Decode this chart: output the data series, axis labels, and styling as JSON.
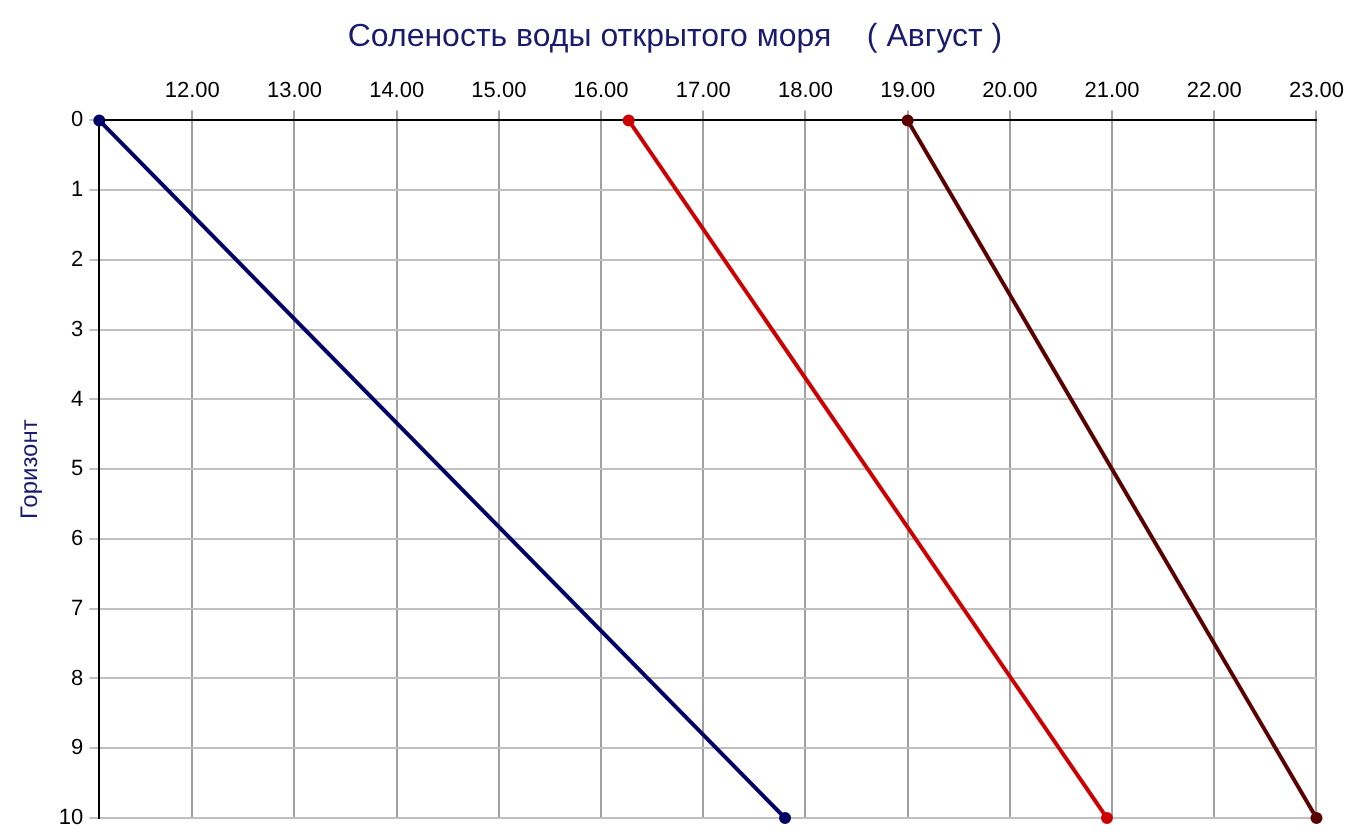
{
  "chart_data": {
    "type": "line",
    "title": "Соленость воды открытого моря    ( Август )",
    "ylabel": "Горизонт",
    "series": [
      {
        "color": "#000066",
        "x": [
          11.09,
          17.8
        ],
        "values": [
          0,
          10
        ]
      },
      {
        "color": "#cc0000",
        "x": [
          16.27,
          20.95
        ],
        "values": [
          0,
          10
        ]
      },
      {
        "color": "#5a0000",
        "x": [
          19.0,
          23.0
        ],
        "values": [
          0,
          10
        ]
      }
    ],
    "xlim": [
      11.09,
      23.0
    ],
    "ylim": [
      10,
      0
    ],
    "xticks": [
      {
        "value": 12,
        "label": "12.00"
      },
      {
        "value": 13,
        "label": "13.00"
      },
      {
        "value": 14,
        "label": "14.00"
      },
      {
        "value": 15,
        "label": "15.00"
      },
      {
        "value": 16,
        "label": "16.00"
      },
      {
        "value": 17,
        "label": "17.00"
      },
      {
        "value": 18,
        "label": "18.00"
      },
      {
        "value": 19,
        "label": "19.00"
      },
      {
        "value": 20,
        "label": "20.00"
      },
      {
        "value": 21,
        "label": "21.00"
      },
      {
        "value": 22,
        "label": "22.00"
      },
      {
        "value": 23,
        "label": "23.00"
      }
    ],
    "yticks": [
      0,
      1,
      2,
      3,
      4,
      5,
      6,
      7,
      8,
      9,
      10
    ],
    "grid": true,
    "marker": "circle"
  }
}
